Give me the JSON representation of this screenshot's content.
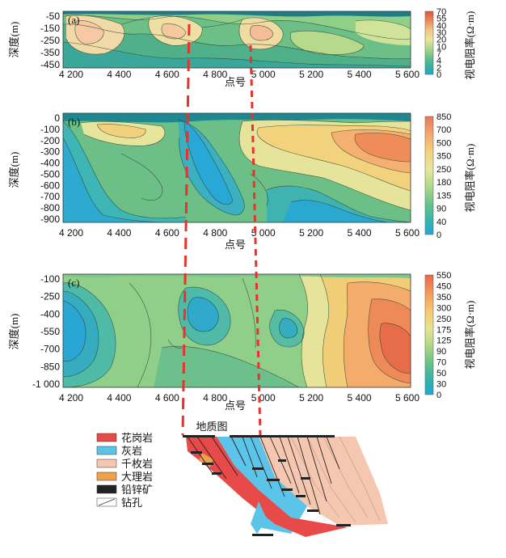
{
  "colors": {
    "high": "#e06a3a",
    "mid_high": "#f2c56a",
    "mid": "#d9e89a",
    "mid_low": "#8cc97a",
    "low": "#3fb0a8",
    "very_low": "#2aa9d6",
    "dash": "#e8322c"
  },
  "axes": {
    "x_label": "点号",
    "y_label": "深度(m)",
    "cb_label": "视电阻率(Ω·m)",
    "x_ticks": [
      "4 200",
      "4 400",
      "4 600",
      "4 800",
      "5 000",
      "5 200",
      "5 400",
      "5 600"
    ]
  },
  "panel_a": {
    "tag": "(a)",
    "y_ticks": [
      "-50",
      "-150",
      "-250",
      "-350",
      "-450"
    ],
    "cb_ticks": [
      "70",
      "55",
      "40",
      "30",
      "20",
      "10",
      "7",
      "4",
      "2",
      "0"
    ]
  },
  "panel_b": {
    "tag": "(b)",
    "y_ticks": [
      "0",
      "-100",
      "-200",
      "-300",
      "-400",
      "-500",
      "-600",
      "-700",
      "-800",
      "-900"
    ],
    "cb_ticks": [
      "850",
      "700",
      "500",
      "350",
      "250",
      "180",
      "135",
      "90",
      "40",
      "0"
    ]
  },
  "panel_c": {
    "tag": "(c)",
    "y_ticks": [
      "-100",
      "-250",
      "-400",
      "-550",
      "-700",
      "-850",
      "-1 000"
    ],
    "cb_ticks": [
      "550",
      "450",
      "350",
      "300",
      "250",
      "175",
      "125",
      "90",
      "70",
      "50",
      "30",
      "0"
    ]
  },
  "geology": {
    "title": "地质图",
    "legend": [
      "花岗岩",
      "灰岩",
      "千枚岩",
      "大理岩",
      "铅锌矿",
      "钻孔"
    ],
    "legend_colors": [
      "#e84a4a",
      "#5bc4e8",
      "#f5c7b0",
      "#f0a04a",
      "#222222",
      "#ffffff"
    ]
  }
}
